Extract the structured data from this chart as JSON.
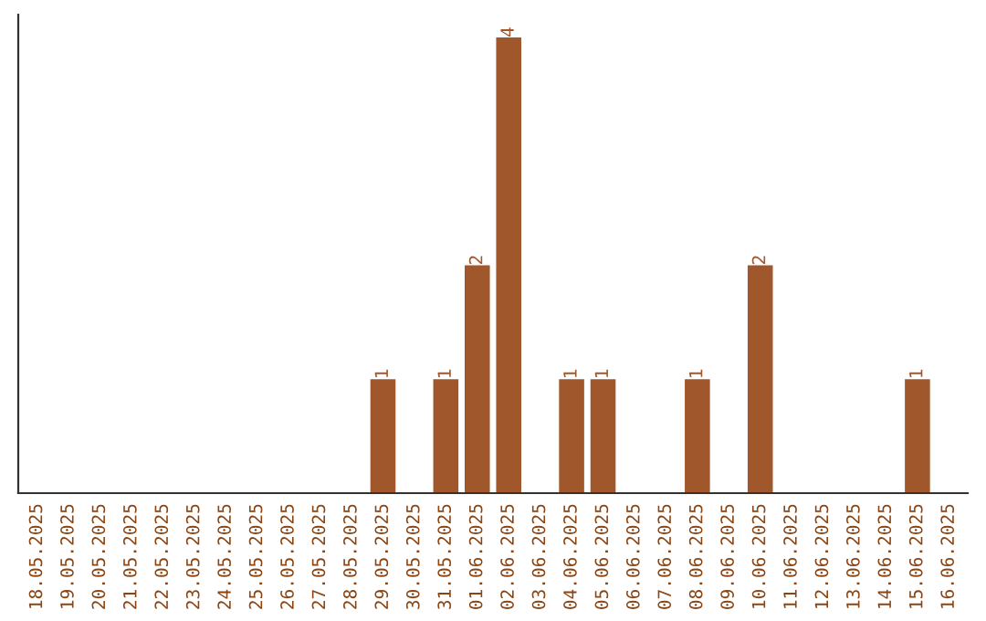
{
  "chart_data": {
    "type": "bar",
    "categories": [
      "18.05.2025",
      "19.05.2025",
      "20.05.2025",
      "21.05.2025",
      "22.05.2025",
      "23.05.2025",
      "24.05.2025",
      "25.05.2025",
      "26.05.2025",
      "27.05.2025",
      "28.05.2025",
      "29.05.2025",
      "30.05.2025",
      "31.05.2025",
      "01.06.2025",
      "02.06.2025",
      "03.06.2025",
      "04.06.2025",
      "05.06.2025",
      "06.06.2025",
      "07.06.2025",
      "08.06.2025",
      "09.06.2025",
      "10.06.2025",
      "11.06.2025",
      "12.06.2025",
      "13.06.2025",
      "14.06.2025",
      "15.06.2025",
      "16.06.2025"
    ],
    "values": [
      0,
      0,
      0,
      0,
      0,
      0,
      0,
      0,
      0,
      0,
      0,
      1,
      0,
      1,
      2,
      4,
      0,
      1,
      1,
      0,
      0,
      1,
      0,
      2,
      0,
      0,
      0,
      0,
      1,
      0
    ],
    "value_labels": [
      null,
      null,
      null,
      null,
      null,
      null,
      null,
      null,
      null,
      null,
      null,
      "1",
      null,
      "1",
      "2",
      "4",
      null,
      "1",
      "1",
      null,
      null,
      "1",
      null,
      "2",
      null,
      null,
      null,
      null,
      "1",
      null
    ],
    "color": "#a0572b",
    "ylim": [
      0,
      4.2
    ],
    "tick_labels": "x",
    "grid": false,
    "legend": false
  }
}
